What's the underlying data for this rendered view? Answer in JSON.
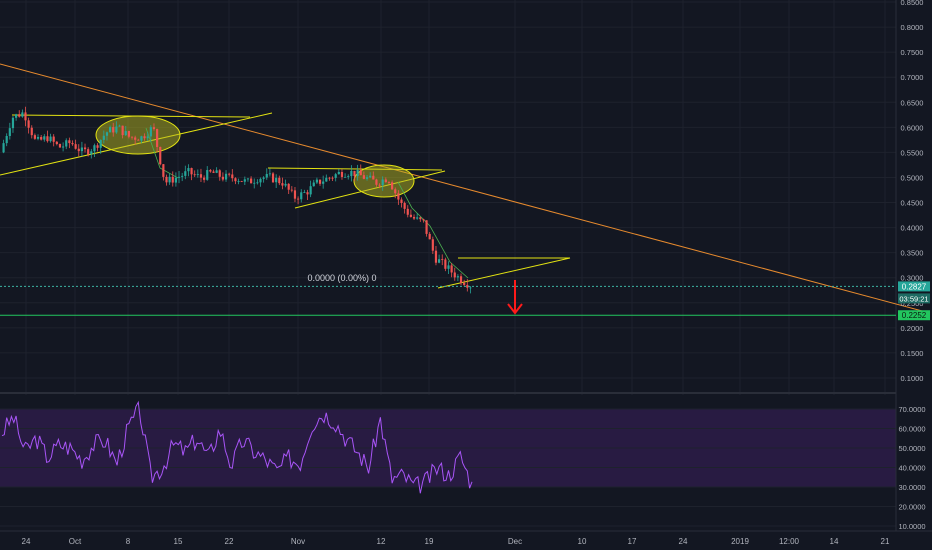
{
  "chart_data": [
    {
      "type": "candlestick",
      "panel": "price",
      "x_tick_labels": [
        "24",
        "Oct",
        "8",
        "15",
        "22",
        "Nov",
        "12",
        "19",
        "Dec",
        "10",
        "17",
        "24",
        "2019",
        "12:00",
        "14",
        "21"
      ],
      "y_tick_labels": [
        "0.8500",
        "0.8000",
        "0.7500",
        "0.7000",
        "0.6500",
        "0.6000",
        "0.5500",
        "0.5000",
        "0.4500",
        "0.4000",
        "0.3500",
        "0.3000",
        "0.2500",
        "0.2000",
        "0.1500",
        "0.1000"
      ],
      "ylim": [
        0.07,
        0.86
      ],
      "close_path": [
        [
          0,
          0.55
        ],
        [
          1,
          0.62
        ],
        [
          2,
          0.63
        ],
        [
          3,
          0.57
        ],
        [
          4,
          0.58
        ],
        [
          5,
          0.56
        ],
        [
          6,
          0.57
        ],
        [
          7,
          0.55
        ],
        [
          8,
          0.56
        ],
        [
          9,
          0.59
        ],
        [
          10,
          0.6
        ],
        [
          11,
          0.58
        ],
        [
          12,
          0.58
        ],
        [
          13,
          0.6
        ],
        [
          14,
          0.49
        ],
        [
          15,
          0.5
        ],
        [
          16,
          0.51
        ],
        [
          17,
          0.5
        ],
        [
          18,
          0.51
        ],
        [
          19,
          0.5
        ],
        [
          20,
          0.5
        ],
        [
          21,
          0.49
        ],
        [
          22,
          0.5
        ],
        [
          23,
          0.5
        ],
        [
          24,
          0.49
        ],
        [
          25,
          0.46
        ],
        [
          26,
          0.47
        ],
        [
          27,
          0.49
        ],
        [
          28,
          0.5
        ],
        [
          29,
          0.51
        ],
        [
          30,
          0.51
        ],
        [
          31,
          0.5
        ],
        [
          32,
          0.49
        ],
        [
          33,
          0.5
        ],
        [
          34,
          0.45
        ],
        [
          35,
          0.42
        ],
        [
          36,
          0.41
        ],
        [
          37,
          0.34
        ],
        [
          38,
          0.32
        ],
        [
          39,
          0.3
        ],
        [
          40,
          0.285
        ]
      ],
      "last_price_label": "0.2827",
      "countdown_label": "03:59:21",
      "support_label": "0.2252",
      "change_readout": "0.0000 (0.00%) 0",
      "colors": {
        "up": "#26a69a",
        "down": "#ef5350",
        "trend": "#ff9800",
        "pattern": "#e3e312",
        "support": "#22c55e",
        "arrow": "#ff1a1a"
      }
    },
    {
      "type": "line",
      "panel": "rsi",
      "y_tick_labels": [
        "70.0000",
        "60.0000",
        "50.0000",
        "40.0000",
        "30.0000",
        "20.0000",
        "10.0000"
      ],
      "ylim": [
        6,
        76
      ],
      "band": [
        30,
        70
      ],
      "values": [
        58,
        66,
        48,
        55,
        45,
        52,
        50,
        44,
        52,
        54,
        42,
        60,
        70,
        35,
        40,
        52,
        48,
        55,
        45,
        60,
        41,
        54,
        48,
        44,
        38,
        45,
        42,
        62,
        68,
        64,
        55,
        48,
        40,
        65,
        34,
        36,
        30,
        33,
        40,
        36,
        46,
        31
      ],
      "color": "#a855f7"
    }
  ]
}
